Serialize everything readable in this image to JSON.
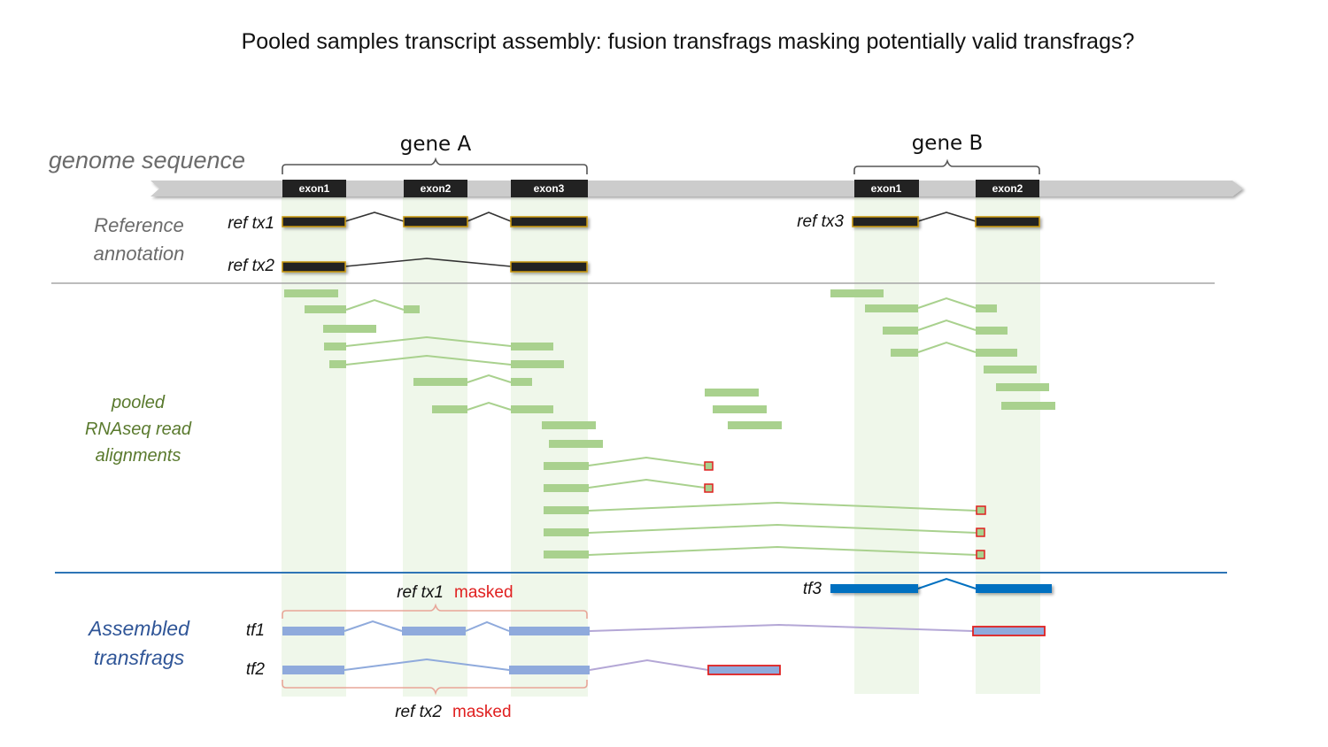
{
  "title": "Pooled samples transcript assembly: fusion transfrags masking potentially valid transfrags?",
  "genes": [
    {
      "name": "gene A",
      "exons": [
        "exon1",
        "exon2",
        "exon3"
      ]
    },
    {
      "name": "gene B",
      "exons": [
        "exon1",
        "exon2"
      ]
    }
  ],
  "track_labels": {
    "genome": "genome sequence",
    "reference": [
      "Reference",
      "annotation"
    ],
    "reads": [
      "pooled",
      "RNAseq read",
      "alignments"
    ],
    "transfrags": [
      "Assembled",
      "transfrags"
    ]
  },
  "reference_transcripts": [
    "ref tx1",
    "ref tx2",
    "ref tx3"
  ],
  "transfrags": [
    "tf1",
    "tf2",
    "tf3"
  ],
  "masking_notes": [
    {
      "transcript": "ref tx1",
      "status": "masked"
    },
    {
      "transcript": "ref tx2",
      "status": "masked"
    }
  ],
  "colors": {
    "exon_box": "#222222",
    "exon_outline": "#c8960c",
    "read": "#a9d18e",
    "read_intron": "#a9d18e",
    "exon_highlight": "#e2f0d9",
    "transfrag": "#8faadc",
    "tf3": "#0070c0",
    "fusion_part": "#e02020",
    "fusion_intron": "#b4a7d6",
    "genome_bar": "#cccccc",
    "divider_gray": "#a6a6a6",
    "divider_blue": "#2e75b6",
    "masked_text": "#e02020"
  }
}
